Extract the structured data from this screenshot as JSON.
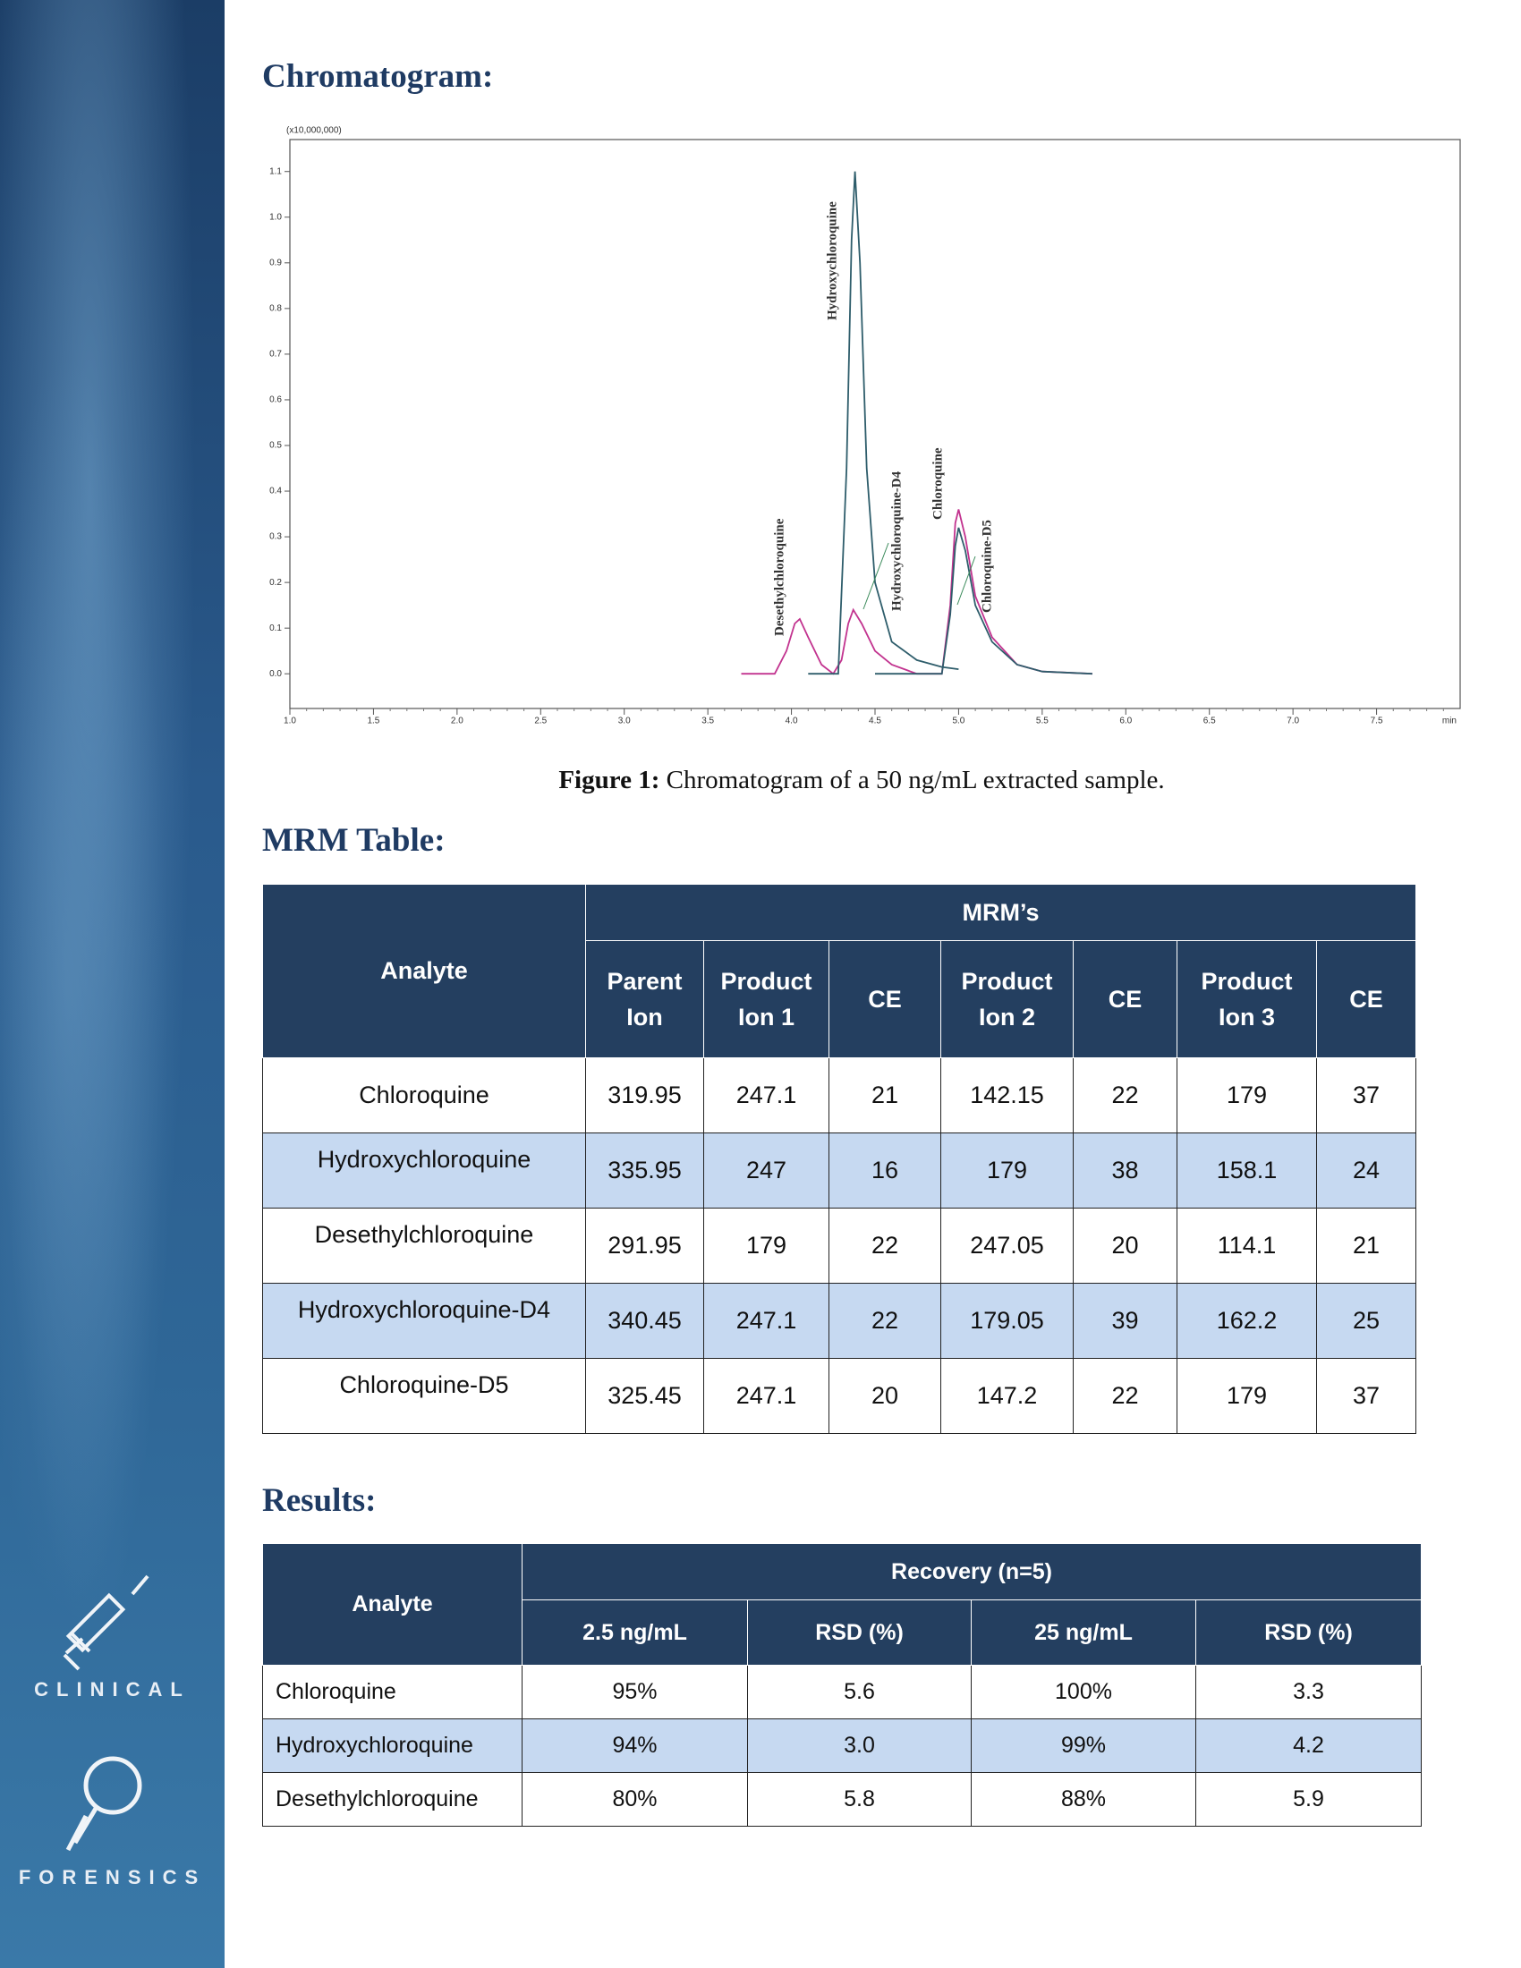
{
  "sidebar": {
    "labels": [
      "CLINICAL",
      "FORENSICS"
    ]
  },
  "chromatogram": {
    "title": "Chromatogram:",
    "chart_data": {
      "type": "line",
      "ylabel": "(x10,000,000)",
      "xlabel": "min",
      "xlim": [
        1.0,
        8.0
      ],
      "ylim": [
        -0.076,
        1.17
      ],
      "xticks": [
        {
          "value": 1.0,
          "label": "1.0"
        },
        1.5,
        {
          "value": 2.0,
          "label": "2.0"
        },
        2.5,
        {
          "value": 3.0,
          "label": "3.0"
        },
        3.5,
        {
          "value": 4.0,
          "label": "4.0"
        },
        4.5,
        {
          "value": 5.0,
          "label": "5.0"
        },
        5.5,
        {
          "value": 6.0,
          "label": "6.0"
        },
        6.5,
        {
          "value": 7.0,
          "label": "7.0"
        },
        7.5
      ],
      "yticks": [
        {
          "value": 0.0,
          "label": "0.0"
        },
        0.1,
        0.2,
        0.3,
        0.4,
        0.5,
        0.6,
        0.7,
        0.8,
        0.9,
        {
          "value": 1.0,
          "label": "1.0"
        },
        1.1
      ],
      "series": [
        {
          "color": "#c2338f",
          "x": [
            3.7,
            3.9,
            3.97,
            4.02,
            4.05,
            4.1,
            4.18,
            4.25,
            4.3,
            4.34,
            4.37,
            4.42,
            4.5,
            4.6,
            4.75,
            4.9,
            4.95,
            4.98,
            5.0,
            5.04,
            5.1,
            5.2,
            5.35,
            5.5,
            5.8
          ],
          "values": [
            0,
            0,
            0.05,
            0.11,
            0.12,
            0.08,
            0.02,
            0,
            0.03,
            0.11,
            0.14,
            0.11,
            0.05,
            0.02,
            0,
            0,
            0.15,
            0.33,
            0.36,
            0.3,
            0.17,
            0.08,
            0.02,
            0.005,
            0
          ]
        },
        {
          "color": "#2e5d6b",
          "x": [
            4.1,
            4.28,
            4.33,
            4.36,
            4.38,
            4.41,
            4.45,
            4.5,
            4.6,
            4.75,
            4.9,
            5.0
          ],
          "values": [
            0,
            0,
            0.45,
            0.95,
            1.1,
            0.9,
            0.45,
            0.2,
            0.07,
            0.03,
            0.015,
            0.01
          ]
        },
        {
          "color": "#2e5d6b",
          "x": [
            4.5,
            4.9,
            4.95,
            4.98,
            5.0,
            5.04,
            5.1,
            5.2,
            5.35,
            5.5,
            5.8
          ],
          "values": [
            0,
            0,
            0.13,
            0.28,
            0.32,
            0.27,
            0.15,
            0.07,
            0.02,
            0.005,
            0
          ]
        }
      ],
      "peak_labels": [
        "Desethylchloroquine",
        "Hydroxychloroquine",
        "Hydroxychloroquine-D4",
        "Chloroquine",
        "Chloroquine-D5"
      ]
    },
    "caption": {
      "label": "Figure 1:",
      "text": "Chromatogram of a 50 ng/mL extracted sample."
    }
  },
  "mrm_table": {
    "title": "MRM Table:",
    "header": {
      "analyte": "Analyte",
      "group": "MRM’s",
      "columns": [
        "Parent Ion",
        "Product Ion 1",
        "CE",
        "Product Ion 2",
        "CE",
        "Product Ion 3",
        "CE"
      ]
    },
    "rows": [
      [
        "Chloroquine",
        "319.95",
        "247.1",
        "21",
        "142.15",
        "22",
        "179",
        "37"
      ],
      [
        "Hydroxychloroquine",
        "335.95",
        "247",
        "16",
        "179",
        "38",
        "158.1",
        "24"
      ],
      [
        "Desethylchloroquine",
        "291.95",
        "179",
        "22",
        "247.05",
        "20",
        "114.1",
        "21"
      ],
      [
        "Hydroxychloroquine-D4",
        "340.45",
        "247.1",
        "22",
        "179.05",
        "39",
        "162.2",
        "25"
      ],
      [
        "Chloroquine-D5",
        "325.45",
        "247.1",
        "20",
        "147.2",
        "22",
        "179",
        "37"
      ]
    ]
  },
  "results_table": {
    "title": "Results:",
    "header": {
      "analyte": "Analyte",
      "group": "Recovery (n=5)",
      "columns": [
        "2.5 ng/mL",
        "RSD (%)",
        "25 ng/mL",
        "RSD (%)"
      ]
    },
    "rows": [
      [
        "Chloroquine",
        "95%",
        "5.6",
        "100%",
        "3.3"
      ],
      [
        "Hydroxychloroquine",
        "94%",
        "3.0",
        "99%",
        "4.2"
      ],
      [
        "Desethylchloroquine",
        "80%",
        "5.8",
        "88%",
        "5.9"
      ]
    ]
  }
}
